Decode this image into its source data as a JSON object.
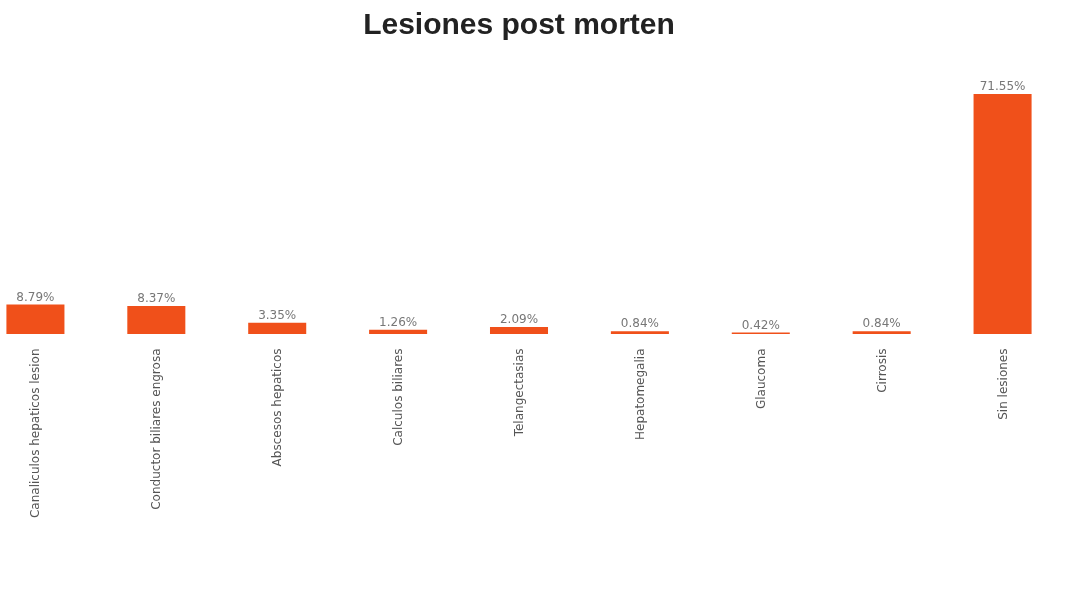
{
  "chart_data": {
    "type": "bar",
    "title": "Lesiones post morten",
    "categories": [
      "Canaliculos hepaticos lesion",
      "Conductor biliares engrosa",
      "Abscesos hepaticos",
      "Calculos biliares",
      "Telangectasias",
      "Hepatomegalia",
      "Glaucoma",
      "Cirrosis",
      "Sin lesiones"
    ],
    "values": [
      8.79,
      8.37,
      3.35,
      1.26,
      2.09,
      0.84,
      0.42,
      0.84,
      71.55
    ],
    "value_labels": [
      "8.79%",
      "8.37%",
      "3.35%",
      "1.26%",
      "2.09%",
      "0.84%",
      "0.42%",
      "0.84%",
      "71.55%"
    ],
    "color": "#f0501a",
    "grid": false
  }
}
